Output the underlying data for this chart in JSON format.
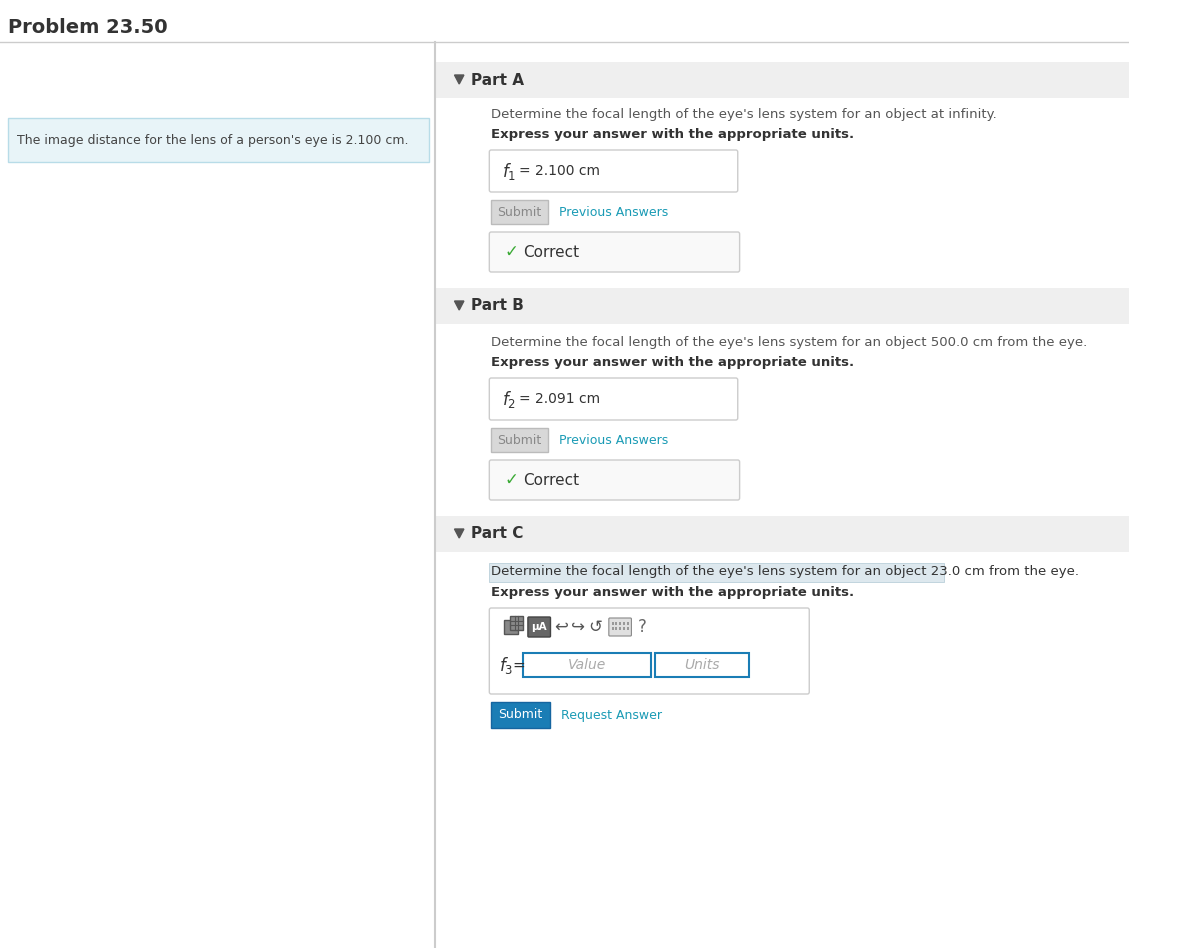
{
  "title": "Problem 23.50",
  "bg_color": "#ffffff",
  "part_header_bg": "#efefef",
  "part_a_label": "Part A",
  "part_b_label": "Part B",
  "part_c_label": "Part C",
  "part_a_question": "Determine the focal length of the eye's lens system for an object at infinity.",
  "part_b_question": "Determine the focal length of the eye's lens system for an object 500.0 cm from the eye.",
  "part_c_question": "Determine the focal length of the eye's lens system for an object 23.0 cm from the eye.",
  "express_answer_text": "Express your answer with the appropriate units.",
  "hint_box_text": "The image distance for the lens of a person's eye is 2.100 cm.",
  "hint_box_bg": "#e8f4f8",
  "hint_box_border": "#b8dce8",
  "submit_disabled_color": "#d8d8d8",
  "submit_active_color": "#1a7db5",
  "previous_answers_color": "#1a9bb5",
  "correct_check_color": "#3aaa35",
  "correct_text": "Correct",
  "submit_text": "Submit",
  "previous_answers_text": "Previous Answers",
  "request_answer_text": "Request Answer",
  "answer_box_border": "#cccccc",
  "answer_box_bg": "#ffffff",
  "correct_box_border": "#cccccc",
  "correct_box_bg": "#f9f9f9",
  "value_placeholder": "Value",
  "units_placeholder": "Units",
  "input_placeholder_color": "#aaaaaa"
}
